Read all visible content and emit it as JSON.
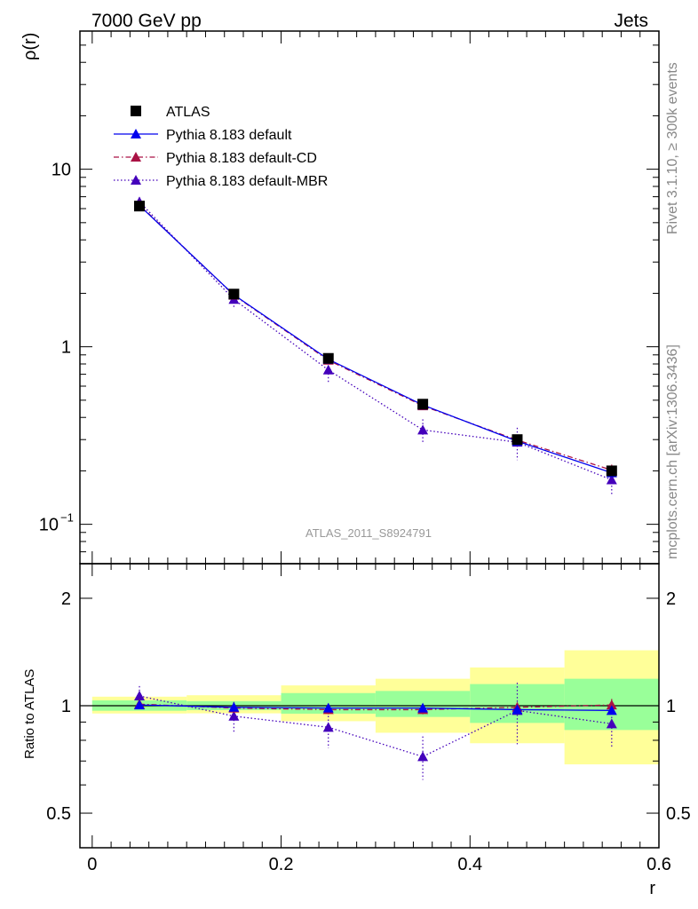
{
  "header": {
    "left": "7000 GeV pp",
    "right": "Jets"
  },
  "side_labels": {
    "rivet": "Rivet 3.1.10, ≥ 300k events",
    "mcplots": "mcplots.cern.ch [arXiv:1306.3436]"
  },
  "watermark": "ATLAS_2011_S8924791",
  "colors": {
    "atlas": "#000000",
    "default": "#0000ee",
    "cd": "#aa1144",
    "mbr": "#4400bb",
    "band_yellow": "#ffff99",
    "band_green": "#99ff99"
  },
  "legend": [
    {
      "label": "ATLAS",
      "style": "data"
    },
    {
      "label": "Pythia 8.183 default",
      "style": "solid"
    },
    {
      "label": "Pythia 8.183 default-CD",
      "style": "dashdot"
    },
    {
      "label": "Pythia 8.183 default-MBR",
      "style": "dotted"
    }
  ],
  "chart_data": [
    {
      "type": "line",
      "panel": "main",
      "ylabel": "ρ(r)",
      "yscale": "log",
      "ylim": [
        0.06,
        60
      ],
      "xlim": [
        -0.013,
        0.6
      ],
      "ytick_labels": [
        {
          "value": 0.1,
          "base": "10",
          "exp": "−1"
        },
        {
          "value": 1,
          "base": "1",
          "exp": ""
        },
        {
          "value": 10,
          "base": "10",
          "exp": ""
        }
      ],
      "x": [
        0.05,
        0.15,
        0.25,
        0.35,
        0.45,
        0.55
      ],
      "series": [
        {
          "name": "ATLAS",
          "values": [
            6.2,
            1.98,
            0.86,
            0.475,
            0.3,
            0.2
          ],
          "errors": [
            0.1,
            0.04,
            0.02,
            0.015,
            0.015,
            0.012
          ]
        },
        {
          "name": "Pythia 8.183 default",
          "values": [
            6.25,
            1.96,
            0.85,
            0.47,
            0.294,
            0.195
          ]
        },
        {
          "name": "Pythia 8.183 default-CD",
          "values": [
            6.3,
            1.95,
            0.84,
            0.465,
            0.298,
            0.202
          ],
          "errors": [
            0.1,
            0.05,
            0.03,
            0.02,
            0.02,
            0.015
          ]
        },
        {
          "name": "Pythia 8.183 default-MBR",
          "values": [
            6.55,
            1.85,
            0.74,
            0.34,
            0.29,
            0.178
          ],
          "errors": [
            0.4,
            0.2,
            0.11,
            0.05,
            0.06,
            0.03
          ]
        }
      ]
    },
    {
      "type": "line",
      "panel": "ratio",
      "ylabel": "Ratio to ATLAS",
      "xlabel": "r",
      "ylim": [
        0.4,
        2.5
      ],
      "xlim": [
        -0.013,
        0.6
      ],
      "xtick_labels": [
        "0",
        "0.2",
        "0.4",
        "0.6"
      ],
      "ytick_labels": [
        "0.5",
        "1",
        "2"
      ],
      "x": [
        0.05,
        0.15,
        0.25,
        0.35,
        0.45,
        0.55
      ],
      "bands": {
        "bins": [
          [
            0.0,
            0.1
          ],
          [
            0.1,
            0.2
          ],
          [
            0.2,
            0.3
          ],
          [
            0.3,
            0.4
          ],
          [
            0.4,
            0.5
          ],
          [
            0.5,
            0.6
          ]
        ],
        "yellow": [
          [
            0.951,
            1.06
          ],
          [
            0.952,
            1.07
          ],
          [
            0.905,
            1.14
          ],
          [
            0.84,
            1.19
          ],
          [
            0.785,
            1.28
          ],
          [
            0.685,
            1.43
          ]
        ],
        "green": [
          [
            0.968,
            1.035
          ],
          [
            0.972,
            1.03
          ],
          [
            0.95,
            1.085
          ],
          [
            0.93,
            1.1
          ],
          [
            0.895,
            1.15
          ],
          [
            0.855,
            1.19
          ]
        ]
      },
      "series": [
        {
          "name": "Pythia 8.183 default",
          "values": [
            1.005,
            0.99,
            0.985,
            0.985,
            0.975,
            0.97
          ]
        },
        {
          "name": "Pythia 8.183 default-CD",
          "values": [
            1.01,
            0.985,
            0.975,
            0.975,
            0.99,
            1.005
          ],
          "errors": [
            0.02,
            0.03,
            0.03,
            0.03,
            0.03,
            0.04
          ]
        },
        {
          "name": "Pythia 8.183 default-MBR",
          "values": [
            1.065,
            0.935,
            0.87,
            0.72,
            0.97,
            0.89
          ],
          "errors": [
            0.07,
            0.09,
            0.11,
            0.1,
            0.19,
            0.13
          ]
        }
      ]
    }
  ]
}
